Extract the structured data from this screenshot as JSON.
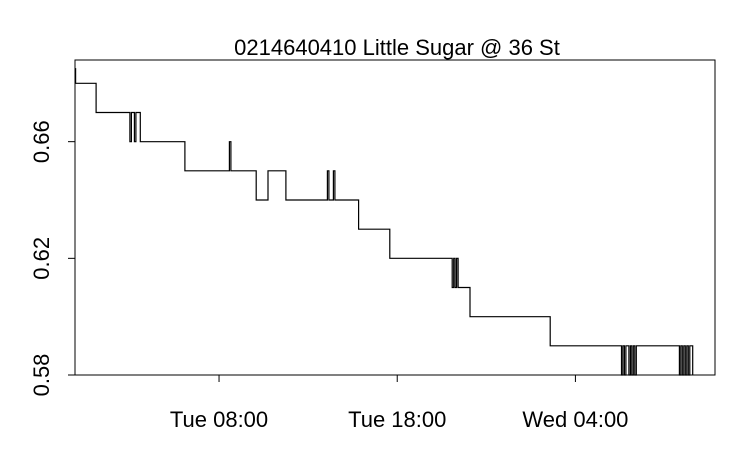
{
  "chart_data": {
    "type": "line",
    "title": "0214640410 Little Sugar @ 36 St",
    "xlabel": "",
    "ylabel": "",
    "x_tick_labels": [
      "Tue 08:00",
      "Tue 18:00",
      "Wed 04:00"
    ],
    "x_ticks": [
      "Tue 08:00",
      "Tue 18:00",
      "Wed 04:00"
    ],
    "xlim": [
      "Mon 23:55",
      "Wed 11:50"
    ],
    "y_tick_labels": [
      "0.58",
      "0.62",
      "0.66"
    ],
    "y_ticks": [
      0.58,
      0.62,
      0.66
    ],
    "ylim": [
      0.58,
      0.688
    ],
    "grid": false,
    "series": [
      {
        "x": [
          "Mon 23:55",
          "Mon 23:56",
          "Mon 23:57",
          "Tue 00:00",
          "Tue 01:05",
          "Tue 01:06",
          "Tue 02:55",
          "Tue 03:00",
          "Tue 03:05",
          "Tue 03:15",
          "Tue 03:20",
          "Tue 03:35",
          "Tue 03:40",
          "Tue 06:00",
          "Tue 06:05",
          "Tue 08:30",
          "Tue 08:35",
          "Tue 08:40",
          "Tue 10:00",
          "Tue 10:05",
          "Tue 10:40",
          "Tue 10:45",
          "Tue 11:40",
          "Tue 11:45",
          "Tue 14:00",
          "Tue 14:05",
          "Tue 14:10",
          "Tue 14:25",
          "Tue 14:30",
          "Tue 14:35",
          "Tue 15:45",
          "Tue 15:50",
          "Tue 17:30",
          "Tue 17:35",
          "Tue 21:00",
          "Tue 21:05",
          "Tue 21:10",
          "Tue 21:15",
          "Tue 21:20",
          "Tue 21:25",
          "Tue 22:00",
          "Tue 22:05",
          "Wed 02:30",
          "Wed 02:35",
          "Wed 06:30",
          "Wed 06:35",
          "Wed 06:40",
          "Wed 06:45",
          "Wed 06:50",
          "Wed 06:55",
          "Wed 07:00",
          "Wed 07:05",
          "Wed 07:10",
          "Wed 07:15",
          "Wed 07:20",
          "Wed 07:25",
          "Wed 09:45",
          "Wed 09:50",
          "Wed 09:55",
          "Wed 10:00",
          "Wed 10:05",
          "Wed 10:10",
          "Wed 10:15",
          "Wed 10:20",
          "Wed 10:25",
          "Wed 10:30",
          "Wed 10:35"
        ],
        "y": [
          0.68,
          0.685,
          0.68,
          0.68,
          0.68,
          0.67,
          0.67,
          0.66,
          0.67,
          0.66,
          0.67,
          0.66,
          0.66,
          0.66,
          0.65,
          0.65,
          0.66,
          0.65,
          0.65,
          0.64,
          0.64,
          0.65,
          0.65,
          0.64,
          0.64,
          0.65,
          0.64,
          0.65,
          0.64,
          0.64,
          0.64,
          0.63,
          0.63,
          0.62,
          0.62,
          0.61,
          0.62,
          0.61,
          0.62,
          0.61,
          0.61,
          0.6,
          0.6,
          0.59,
          0.59,
          0.58,
          0.59,
          0.58,
          0.59,
          0.59,
          0.58,
          0.59,
          0.58,
          0.59,
          0.58,
          0.59,
          0.59,
          0.58,
          0.59,
          0.58,
          0.59,
          0.58,
          0.59,
          0.58,
          0.59,
          0.59,
          0.58
        ]
      }
    ]
  }
}
